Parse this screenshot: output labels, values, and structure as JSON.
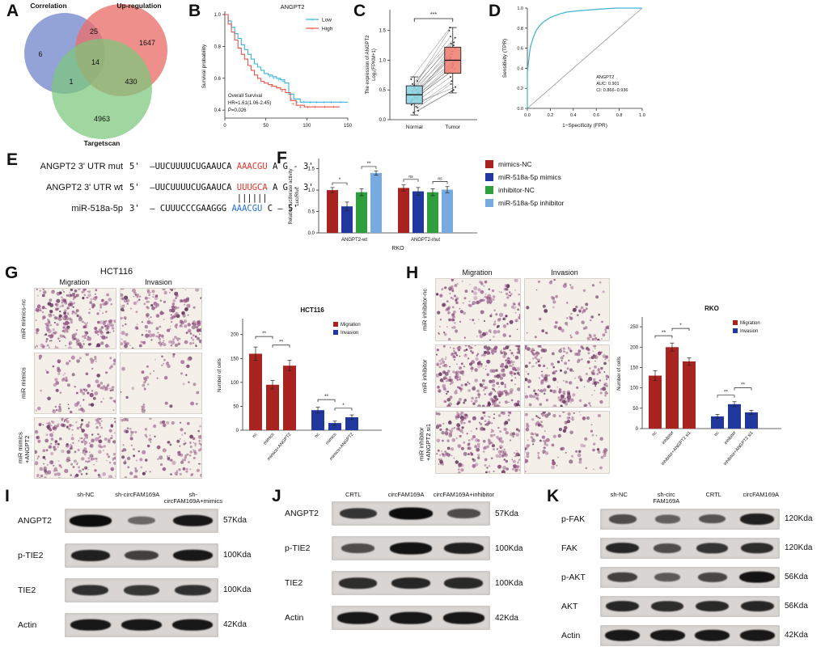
{
  "colors": {
    "venn_blue": "#7b8fd0",
    "venn_red": "#e9706a",
    "venn_green": "#7cc87c",
    "km_low": "#35b4d8",
    "km_high": "#e8534a",
    "box_normal": "#8ed2e0",
    "box_tumor": "#ef8276",
    "roc_curve": "#49b6d6",
    "speckle": [
      "#8d4b7c",
      "#9a5c8b",
      "#74406b",
      "#a76f9b",
      "#5e3357"
    ]
  },
  "panelA": {
    "label": "A",
    "sets": [
      {
        "name": "Correlation",
        "count_only": "6"
      },
      {
        "name": "Up-regulation",
        "count_only": "1647"
      },
      {
        "name": "Targetscan",
        "count_only": "4963"
      }
    ],
    "overlaps": {
      "corr_up": "25",
      "corr_target": "1",
      "up_target": "430",
      "all_three": "14"
    }
  },
  "panelB": {
    "label": "B",
    "title": "ANGPT2",
    "ylabel": "Survival probability",
    "stats": [
      "Overall Survival",
      "HR=1.61(1.06-2.45)",
      "P=0.026"
    ],
    "chart_data": {
      "type": "line",
      "xlim": [
        0,
        150
      ],
      "ylim": [
        0.35,
        1.0
      ],
      "xticks": [
        0,
        50,
        100,
        150
      ],
      "yticks": [
        0.4,
        0.6,
        0.8,
        1.0
      ],
      "series": [
        {
          "name": "Low",
          "x": [
            0,
            4,
            8,
            12,
            16,
            20,
            24,
            28,
            32,
            36,
            40,
            44,
            48,
            53,
            58,
            63,
            68,
            73,
            78,
            84,
            92,
            150
          ],
          "y": [
            1.0,
            0.96,
            0.92,
            0.88,
            0.85,
            0.81,
            0.78,
            0.75,
            0.72,
            0.69,
            0.67,
            0.65,
            0.63,
            0.62,
            0.61,
            0.6,
            0.59,
            0.57,
            0.5,
            0.47,
            0.45,
            0.45
          ],
          "censors": [
            [
              55,
              0.61
            ],
            [
              60,
              0.6
            ],
            [
              66,
              0.59
            ],
            [
              71,
              0.58
            ],
            [
              81,
              0.47
            ],
            [
              88,
              0.45
            ],
            [
              96,
              0.45
            ],
            [
              104,
              0.45
            ],
            [
              112,
              0.45
            ],
            [
              121,
              0.45
            ],
            [
              130,
              0.45
            ],
            [
              141,
              0.45
            ]
          ]
        },
        {
          "name": "High",
          "x": [
            0,
            4,
            8,
            12,
            16,
            20,
            24,
            28,
            32,
            36,
            40,
            44,
            48,
            53,
            58,
            63,
            68,
            74,
            80,
            87,
            97,
            140
          ],
          "y": [
            1.0,
            0.94,
            0.89,
            0.84,
            0.79,
            0.75,
            0.72,
            0.68,
            0.65,
            0.62,
            0.6,
            0.58,
            0.57,
            0.56,
            0.55,
            0.54,
            0.53,
            0.51,
            0.46,
            0.43,
            0.42,
            0.42
          ],
          "censors": [
            [
              57,
              0.55
            ],
            [
              64,
              0.54
            ],
            [
              70,
              0.52
            ],
            [
              83,
              0.44
            ],
            [
              92,
              0.42
            ],
            [
              101,
              0.42
            ],
            [
              110,
              0.42
            ],
            [
              122,
              0.42
            ],
            [
              133,
              0.42
            ]
          ]
        }
      ]
    }
  },
  "panelC": {
    "label": "C",
    "ylabel_lines": [
      "The expression of ANGPT2",
      "Log₂(FPKM+1)"
    ],
    "significance": "***",
    "chart_data": {
      "type": "paired-box",
      "categories": [
        "Normal",
        "Tumor"
      ],
      "normal": [
        0.32,
        0.48,
        0.22,
        0.58,
        0.42,
        0.3,
        0.55,
        0.25,
        0.4,
        0.65,
        0.15,
        0.5,
        0.37,
        0.46,
        0.28,
        0.6,
        0.34,
        0.44,
        0.2,
        0.52,
        0.36,
        0.12,
        0.68,
        0.41
      ],
      "tumor": [
        0.85,
        1.2,
        0.65,
        1.4,
        1.0,
        0.8,
        1.3,
        0.55,
        1.1,
        1.5,
        0.48,
        1.25,
        0.95,
        1.15,
        0.72,
        1.38,
        0.88,
        1.05,
        0.6,
        1.28,
        0.92,
        0.5,
        1.55,
        1.02
      ],
      "box_normal": {
        "q1": 0.27,
        "median": 0.42,
        "q3": 0.57,
        "lo": 0.08,
        "hi": 0.72
      },
      "box_tumor": {
        "q1": 0.78,
        "median": 1.0,
        "q3": 1.22,
        "lo": 0.45,
        "hi": 1.55
      },
      "ylim": [
        0,
        1.85
      ],
      "yticks": [
        0.0,
        0.5,
        1.0,
        1.5
      ]
    }
  },
  "panelD": {
    "label": "D",
    "xlabel": "1−Specificity (FPR)",
    "ylabel": "Sensitivity (TPR)",
    "annotation": [
      "ANGPT2",
      "AUC: 0.901",
      "CI: 0.866−0.936"
    ],
    "chart_data": {
      "type": "line",
      "xlim": [
        0,
        1
      ],
      "ylim": [
        0,
        1
      ],
      "ticks": [
        0.0,
        0.2,
        0.4,
        0.6,
        0.8,
        1.0
      ],
      "roc": [
        [
          0,
          0
        ],
        [
          0,
          0.36
        ],
        [
          0.01,
          0.46
        ],
        [
          0.02,
          0.56
        ],
        [
          0.03,
          0.63
        ],
        [
          0.05,
          0.7
        ],
        [
          0.07,
          0.76
        ],
        [
          0.09,
          0.8
        ],
        [
          0.12,
          0.84
        ],
        [
          0.15,
          0.87
        ],
        [
          0.19,
          0.9
        ],
        [
          0.23,
          0.92
        ],
        [
          0.28,
          0.94
        ],
        [
          0.34,
          0.96
        ],
        [
          0.42,
          0.97
        ],
        [
          0.52,
          0.98
        ],
        [
          0.64,
          0.99
        ],
        [
          0.78,
          1.0
        ],
        [
          1,
          1
        ]
      ]
    }
  },
  "panelE": {
    "label": "E",
    "rows": [
      {
        "label": "ANGPT2 3' UTR mut",
        "segments": [
          {
            "t": "5'  –UUCUUUUCUGAAUCA ",
            "c": "#111111"
          },
          {
            "t": "AAACGU",
            "c": "#e8342c"
          },
          {
            "t": " A G - 3'",
            "c": "#111111"
          }
        ]
      },
      {
        "label": "ANGPT2 3' UTR wt",
        "segments": [
          {
            "t": "5'  –UUCUUUUCUGAAUCA ",
            "c": "#111111"
          },
          {
            "t": "UUUGCA",
            "c": "#e8342c"
          },
          {
            "t": " A G - 3'",
            "c": "#111111"
          }
        ]
      },
      {
        "label": "",
        "cls": "pipes",
        "segments": [
          {
            "t": "                     ",
            "c": "#111111"
          },
          {
            "t": "||||||",
            "c": "#111111"
          }
        ]
      },
      {
        "label": "miR-518a-5p",
        "segments": [
          {
            "t": "3'  – CUUUCCCGAAGGG ",
            "c": "#111111"
          },
          {
            "t": "AAACGU",
            "c": "#2a6fd6"
          },
          {
            "t": " C – 5'",
            "c": "#111111"
          }
        ]
      }
    ]
  },
  "panelF": {
    "label": "F",
    "ylabel_lines": [
      "Relative luciferase activity",
      "Luc/Rluc"
    ],
    "chart_data": {
      "type": "bar",
      "categories": [
        "ANGPT2-wt",
        "ANGPT2-mut"
      ],
      "xlabel": "RKO",
      "ylim": [
        0,
        1.7
      ],
      "yticks": [
        0.0,
        0.5,
        1.0,
        1.5
      ],
      "series": [
        {
          "name": "mimics-NC",
          "color": "#a92420",
          "values": [
            1.0,
            1.05
          ],
          "errors": [
            0.06,
            0.07
          ]
        },
        {
          "name": "miR-518a-5p mimics",
          "color": "#20389e",
          "values": [
            0.62,
            0.97
          ],
          "errors": [
            0.1,
            0.09
          ]
        },
        {
          "name": "inhibitor-NC",
          "color": "#2f9e3c",
          "values": [
            0.95,
            0.95
          ],
          "errors": [
            0.08,
            0.08
          ]
        },
        {
          "name": "miR-518a-5p inhibitor",
          "color": "#77aade",
          "values": [
            1.4,
            1.01
          ],
          "errors": [
            0.05,
            0.07
          ]
        }
      ],
      "significance": [
        {
          "bars": [
            0,
            1
          ],
          "label": "*",
          "y": 1.17
        },
        {
          "bars": [
            2,
            3
          ],
          "label": "**",
          "y": 1.55
        },
        {
          "bars": [
            4,
            5
          ],
          "label": "ns",
          "y": 1.25
        },
        {
          "bars": [
            6,
            7
          ],
          "label": "ns",
          "y": 1.2
        }
      ]
    }
  },
  "panelG": {
    "label": "G",
    "cell_line": "HCT116",
    "col_headers": [
      "Migration",
      "Invasion"
    ],
    "rows": [
      {
        "label": "miR mimics-nc",
        "densities": [
          180,
          140
        ]
      },
      {
        "label": "miR mimics",
        "densities": [
          70,
          30
        ]
      },
      {
        "label": "miR mimics\n+ANGPT2",
        "densities": [
          150,
          85
        ]
      }
    ],
    "ylabel_lines": [
      "Number of cells"
    ],
    "chart_data": {
      "type": "bar",
      "title": "HCT116",
      "categories": [
        "nc",
        "mimics",
        "mimics+ANGPT2"
      ],
      "ylim": [
        0,
        230
      ],
      "yticks": [
        0,
        50,
        100,
        150,
        200
      ],
      "series": [
        {
          "name": "Migration",
          "color": "#a92420",
          "values": [
            160,
            95,
            135
          ],
          "errors": [
            14,
            9,
            11
          ]
        },
        {
          "name": "Invasion",
          "color": "#20389e",
          "values": [
            42,
            15,
            27
          ],
          "errors": [
            6,
            4,
            5
          ]
        }
      ],
      "significance": [
        {
          "bars": [
            0,
            1
          ],
          "label": "**",
          "y": 196
        },
        {
          "bars": [
            1,
            2
          ],
          "label": "**",
          "y": 178
        },
        {
          "bars": [
            3,
            4
          ],
          "label": "**",
          "y": 64
        },
        {
          "bars": [
            4,
            5
          ],
          "label": "*",
          "y": 46
        }
      ]
    }
  },
  "panelH": {
    "label": "H",
    "col_headers": [
      "Migration",
      "Invasion"
    ],
    "rows": [
      {
        "label": "miR inhibitor-nc",
        "densities": [
          110,
          55
        ]
      },
      {
        "label": "miR inhibitor",
        "densities": [
          210,
          150
        ]
      },
      {
        "label": "miR inhibitor\n+ANGPT2 si1",
        "densities": [
          150,
          80
        ]
      }
    ],
    "ylabel_lines": [
      "Number of cells"
    ],
    "chart_data": {
      "type": "bar",
      "title": "RKO",
      "categories": [
        "nc",
        "inhibitor",
        "inhibitor+ANGPT2 si1"
      ],
      "ylim": [
        0,
        270
      ],
      "yticks": [
        0,
        50,
        100,
        150,
        200,
        250
      ],
      "series": [
        {
          "name": "Migration",
          "color": "#a92420",
          "values": [
            130,
            200,
            165
          ],
          "errors": [
            12,
            10,
            9
          ]
        },
        {
          "name": "Invasion",
          "color": "#20389e",
          "values": [
            30,
            60,
            40
          ],
          "errors": [
            5,
            6,
            5
          ]
        }
      ],
      "significance": [
        {
          "bars": [
            0,
            1
          ],
          "label": "**",
          "y": 228
        },
        {
          "bars": [
            1,
            2
          ],
          "label": "*",
          "y": 246
        },
        {
          "bars": [
            3,
            4
          ],
          "label": "**",
          "y": 82
        },
        {
          "bars": [
            4,
            5
          ],
          "label": "**",
          "y": 100
        }
      ]
    }
  },
  "panelI": {
    "label": "I",
    "lanes": [
      "sh-NC",
      "sh-circFAM169A",
      "sh-circFAM169A+mimics"
    ],
    "rows": [
      {
        "protein": "ANGPT2",
        "kda": "57Kda",
        "bands": [
          1.0,
          0.3,
          0.9
        ]
      },
      {
        "protein": "p-TIE2",
        "kda": "100Kda",
        "bands": [
          0.85,
          0.6,
          0.9
        ]
      },
      {
        "protein": "TIE2",
        "kda": "100Kda",
        "bands": [
          0.72,
          0.68,
          0.72
        ]
      },
      {
        "protein": "Actin",
        "kda": "42Kda",
        "bands": [
          0.92,
          0.92,
          0.92
        ]
      }
    ]
  },
  "panelJ": {
    "label": "J",
    "lanes": [
      "CRTL",
      "circFAM169A",
      "circFAM169A+inhibitor"
    ],
    "rows": [
      {
        "protein": "ANGPT2",
        "kda": "57Kda",
        "bands": [
          0.7,
          1.0,
          0.5
        ]
      },
      {
        "protein": "p-TIE2",
        "kda": "100Kda",
        "bands": [
          0.5,
          0.95,
          0.85
        ]
      },
      {
        "protein": "TIE2",
        "kda": "100Kda",
        "bands": [
          0.75,
          0.8,
          0.78
        ]
      },
      {
        "protein": "Actin",
        "kda": "42Kda",
        "bands": [
          0.92,
          0.92,
          0.92
        ]
      }
    ]
  },
  "panelK": {
    "label": "K",
    "lanes": [
      "sh-NC",
      "sh-circ FAM169A",
      "CRTL",
      "circFAM169A"
    ],
    "rows": [
      {
        "protein": "p-FAK",
        "kda": "120Kda",
        "bands": [
          0.5,
          0.35,
          0.45,
          0.85
        ]
      },
      {
        "protein": "FAK",
        "kda": "120Kda",
        "bands": [
          0.8,
          0.5,
          0.7,
          0.75
        ]
      },
      {
        "protein": "p-AKT",
        "kda": "56Kda",
        "bands": [
          0.6,
          0.4,
          0.55,
          0.95
        ]
      },
      {
        "protein": "AKT",
        "kda": "56Kda",
        "bands": [
          0.8,
          0.75,
          0.78,
          0.8
        ]
      },
      {
        "protein": "Actin",
        "kda": "42Kda",
        "bands": [
          0.9,
          0.9,
          0.9,
          0.9
        ]
      }
    ]
  }
}
